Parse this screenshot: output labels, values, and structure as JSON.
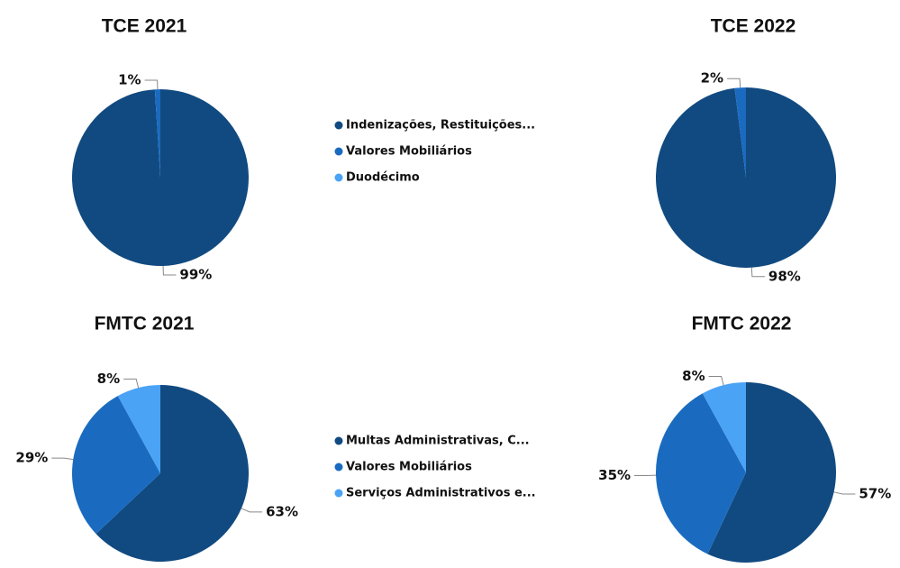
{
  "chart_data": [
    {
      "type": "pie",
      "title": "TCE 2021",
      "categories": [
        "Indenizações, Restituições...",
        "Valores Mobiliários",
        "Duodécimo"
      ],
      "values": [
        99,
        1,
        0
      ],
      "value_labels": [
        "99%",
        "1%",
        null
      ],
      "colors": [
        "#114a80",
        "#1a6bc0",
        "#4aa3f5"
      ]
    },
    {
      "type": "pie",
      "title": "TCE 2022",
      "values": [
        98,
        2,
        0
      ],
      "value_labels": [
        "98%",
        "2%",
        null
      ],
      "colors": [
        "#114a80",
        "#1a6bc0",
        "#4aa3f5"
      ]
    },
    {
      "type": "pie",
      "title": "FMTC 2021",
      "categories": [
        "Multas Administrativas, C...",
        "Valores Mobiliários",
        "Serviços Administrativos e..."
      ],
      "values": [
        63,
        29,
        8
      ],
      "value_labels": [
        "63%",
        "29%",
        "8%"
      ],
      "colors": [
        "#114a80",
        "#1a6bc0",
        "#4aa3f5"
      ]
    },
    {
      "type": "pie",
      "title": "FMTC 2022",
      "values": [
        57,
        35,
        8
      ],
      "value_labels": [
        "57%",
        "35%",
        "8%"
      ],
      "colors": [
        "#114a80",
        "#1a6bc0",
        "#4aa3f5"
      ]
    }
  ]
}
